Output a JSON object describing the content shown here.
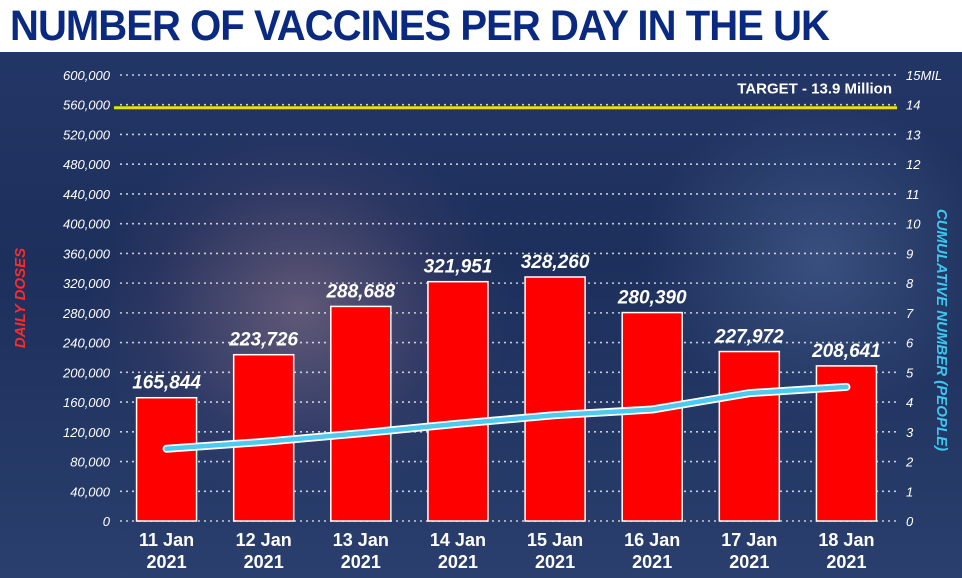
{
  "title": "NUMBER OF VACCINES PER DAY IN THE UK",
  "chart_data": {
    "type": "bar",
    "categories": [
      [
        "11 Jan",
        "2021"
      ],
      [
        "12 Jan",
        "2021"
      ],
      [
        "13 Jan",
        "2021"
      ],
      [
        "14 Jan",
        "2021"
      ],
      [
        "15 Jan",
        "2021"
      ],
      [
        "16 Jan",
        "2021"
      ],
      [
        "17 Jan",
        "2021"
      ],
      [
        "18 Jan",
        "2021"
      ]
    ],
    "series": [
      {
        "axis": "left",
        "type": "bar",
        "values": [
          165844,
          223726,
          288688,
          321951,
          328260,
          280390,
          227972,
          208641
        ],
        "labels": [
          "165,844",
          "223,726",
          "288,688",
          "321,951",
          "328,260",
          "280,390",
          "227,972",
          "208,641"
        ],
        "color": "#ff0000"
      },
      {
        "axis": "right",
        "type": "line",
        "values": [
          2.43,
          2.66,
          2.95,
          3.27,
          3.56,
          3.75,
          4.3,
          4.51
        ],
        "color": "#4ec9f0"
      }
    ],
    "ylabel": "DAILY DOSES",
    "y2label": "CUMULATIVE NUMBER (PEOPLE)",
    "ylim": [
      0,
      600000
    ],
    "y2lim": [
      0,
      15
    ],
    "yticks": [
      "0",
      "40,000",
      "80,000",
      "120,000",
      "160,000",
      "200,000",
      "240,000",
      "280,000",
      "320,000",
      "360,000",
      "400,000",
      "440,000",
      "480,000",
      "520,000",
      "560,000",
      "600,000"
    ],
    "y2ticks": [
      "0",
      "1",
      "2",
      "3",
      "4",
      "5",
      "6",
      "7",
      "8",
      "9",
      "10",
      "11",
      "12",
      "13",
      "14",
      "15MIL"
    ],
    "target": {
      "value": 13.9,
      "axis": "right",
      "label": "TARGET - 13.9 Million",
      "color": "#e8e000"
    },
    "grid": true
  }
}
